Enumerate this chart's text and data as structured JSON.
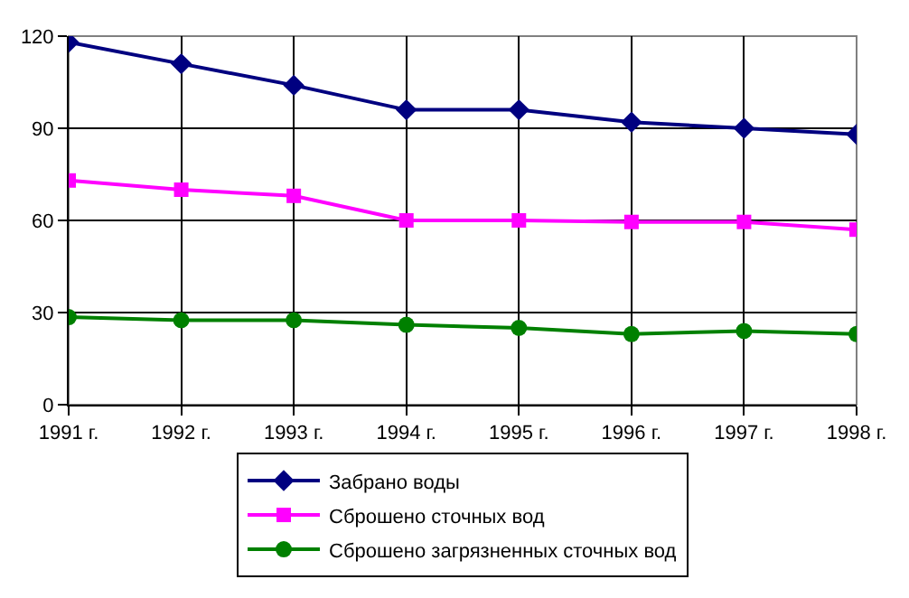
{
  "chart_data": {
    "type": "line",
    "categories": [
      "1991 г.",
      "1992 г.",
      "1993 г.",
      "1994 г.",
      "1995 г.",
      "1996 г.",
      "1997 г.",
      "1998 г."
    ],
    "series": [
      {
        "name": "Забрано воды",
        "color": "#000080",
        "marker": "diamond",
        "values": [
          118,
          111,
          104,
          96,
          96,
          92,
          90,
          88
        ]
      },
      {
        "name": "Сброшено сточных вод",
        "color": "#ff00ff",
        "marker": "square",
        "values": [
          73,
          70,
          68,
          60,
          60,
          59.5,
          59.5,
          57
        ]
      },
      {
        "name": "Сброшено загрязненных сточных вод",
        "color": "#008000",
        "marker": "circle",
        "values": [
          28.5,
          27.5,
          27.5,
          26,
          25,
          23,
          24,
          23
        ]
      }
    ],
    "ylim": [
      0,
      120
    ],
    "yticks": [
      0,
      30,
      60,
      90,
      120
    ],
    "grid": true,
    "legend": "bottom",
    "line_style": "solid"
  }
}
